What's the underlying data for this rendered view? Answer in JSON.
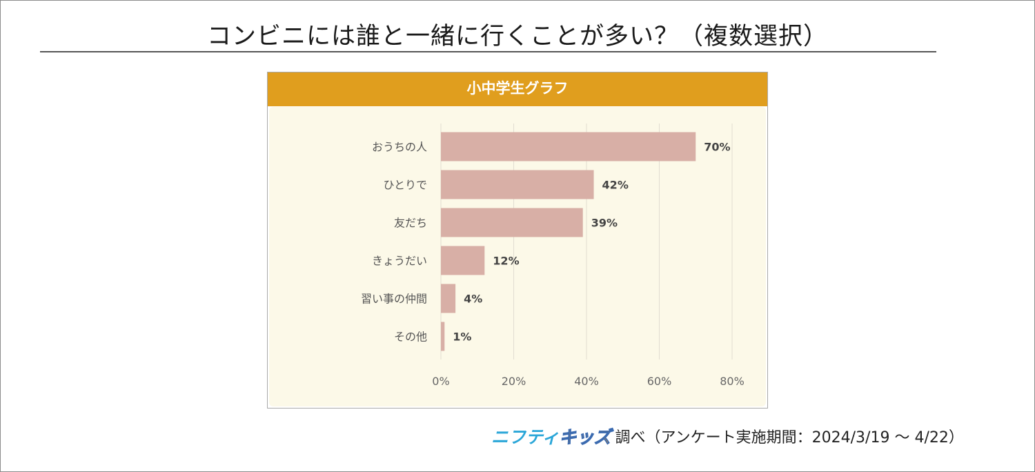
{
  "title": "コンビニには誰と一緒に行くことが多い？（複数選択）",
  "chart_header": "小中学生グラフ",
  "colors": {
    "header": "#e09e1e",
    "panel": "#fcf9e8",
    "bar": "#d8afa6",
    "grid": "#e2ddd0",
    "brand_blue": "#2aa6d8",
    "brand_orange": "#f39a1e"
  },
  "chart_data": {
    "type": "bar",
    "orientation": "horizontal",
    "title": "小中学生グラフ",
    "categories": [
      "おうちの人",
      "ひとりで",
      "友だち",
      "きょうだい",
      "習い事の仲間",
      "その他"
    ],
    "values": [
      70,
      42,
      39,
      12,
      4,
      1
    ],
    "value_labels": [
      "70%",
      "42%",
      "39%",
      "12%",
      "4%",
      "1%"
    ],
    "xlim": [
      0,
      80
    ],
    "xticks": [
      0,
      20,
      40,
      60,
      80
    ],
    "xtick_labels": [
      "0%",
      "20%",
      "40%",
      "60%",
      "80%"
    ],
    "grid": true
  },
  "footer": {
    "logo_part1": "ニフティ",
    "logo_part2": "キッズ",
    "source": "調べ（アンケート実施期間：2024/3/19 ～ 4/22）"
  }
}
